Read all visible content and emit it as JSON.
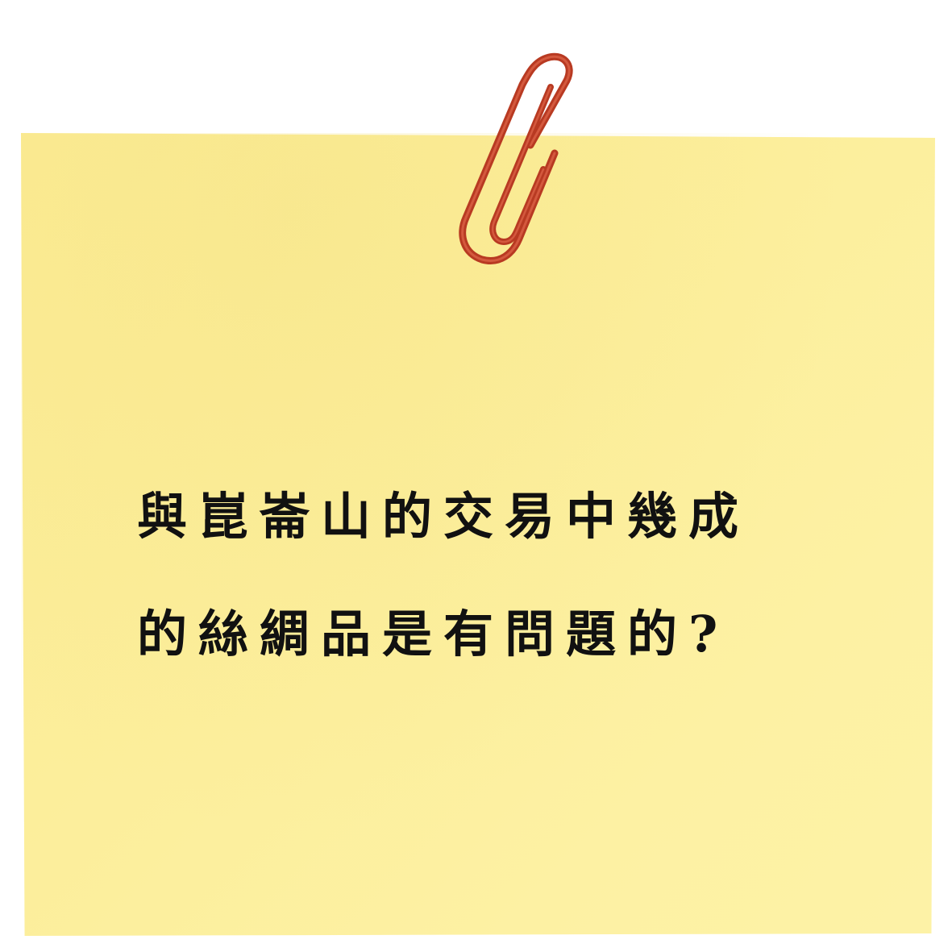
{
  "note": {
    "line1": "與崑崙山的交易中幾成",
    "line2": "的絲綢品是有問題的?"
  },
  "colors": {
    "paper": "#fcee9b",
    "clip": "#c8462a",
    "text": "#111111"
  },
  "icons": {
    "clip": "paperclip-icon"
  }
}
